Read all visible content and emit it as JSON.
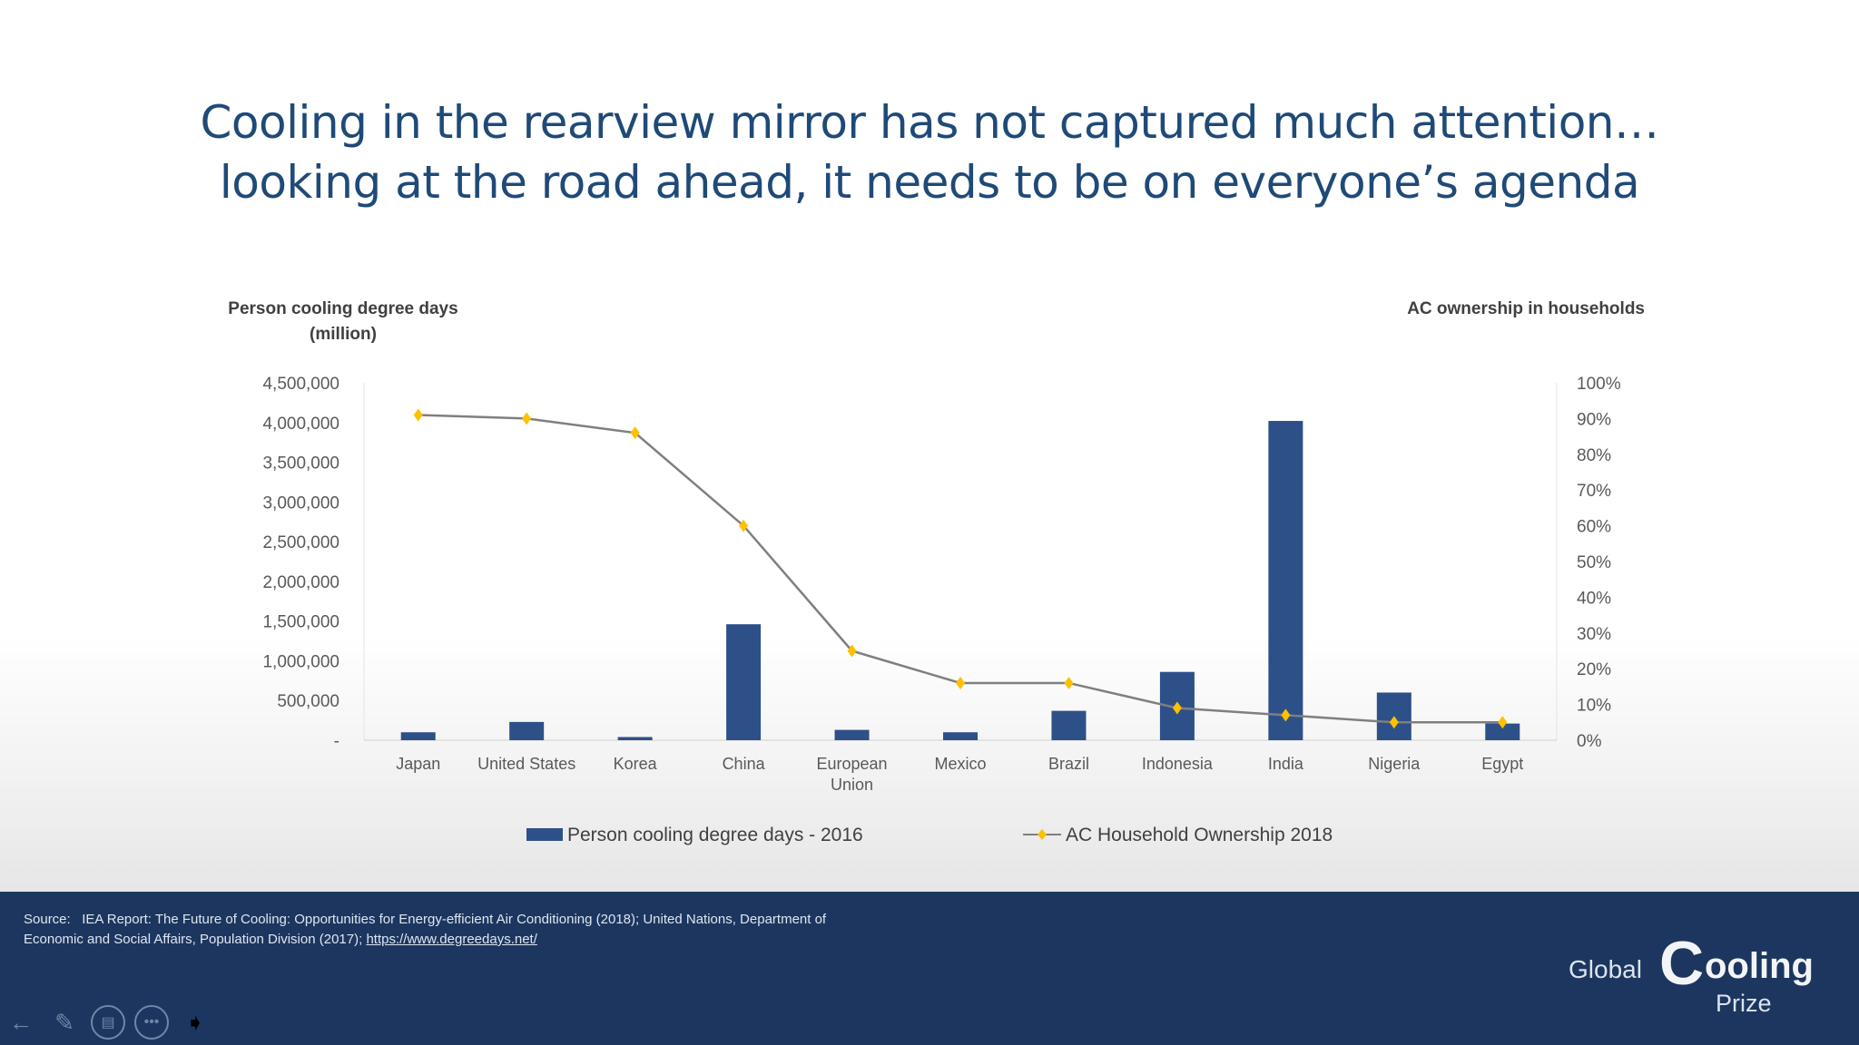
{
  "slide": {
    "title_line1": "Cooling in the rearview mirror has not captured much attention…",
    "title_line2": "looking at the road ahead, it needs to be on everyone’s agenda"
  },
  "chart_data": {
    "type": "bar+line",
    "categories": [
      "Japan",
      "United States",
      "Korea",
      "China",
      "European Union",
      "Mexico",
      "Brazil",
      "Indonesia",
      "India",
      "Nigeria",
      "Egypt"
    ],
    "series": [
      {
        "name": "Person cooling degree days - 2016",
        "type": "bar",
        "axis": "left",
        "color": "#2e5088",
        "values": [
          100000,
          230000,
          40000,
          1460000,
          130000,
          100000,
          370000,
          860000,
          4020000,
          600000,
          210000
        ]
      },
      {
        "name": "AC Household Ownership 2018",
        "type": "line",
        "axis": "right",
        "color": "#7f7f7f",
        "marker_color": "#ffc000",
        "values": [
          91,
          90,
          86,
          60,
          25,
          16,
          16,
          9,
          7,
          5,
          5
        ]
      }
    ],
    "ylabel_left_line1": "Person cooling degree days",
    "ylabel_left_line2": "(million)",
    "ylabel_right": "AC ownership in households",
    "ylim_left": [
      0,
      4500000
    ],
    "ylim_right": [
      0,
      100
    ],
    "left_ticks": [
      "-",
      "500,000",
      "1,000,000",
      "1,500,000",
      "2,000,000",
      "2,500,000",
      "3,000,000",
      "3,500,000",
      "4,000,000",
      "4,500,000"
    ],
    "right_ticks": [
      "0%",
      "10%",
      "20%",
      "30%",
      "40%",
      "50%",
      "60%",
      "70%",
      "80%",
      "90%",
      "100%"
    ],
    "legend_position": "bottom",
    "grid": false
  },
  "footer": {
    "source_label": "Source:",
    "source_text": "IEA Report: The Future of Cooling: Opportunities for Energy-efficient Air Conditioning (2018); United Nations, Department of Economic and Social Affairs, Population Division (2017);",
    "source_link": "https://www.degreedays.net/",
    "logo_text": "Global Cooling Prize",
    "logo_global": "Global",
    "logo_c": "C",
    "logo_ooling": "ooling",
    "logo_prize": "Prize"
  },
  "controls": {
    "back_icon": "←",
    "pen_icon": "✎",
    "slides_icon": "▤",
    "more_icon": "•••",
    "pointer_icon": "➧"
  }
}
